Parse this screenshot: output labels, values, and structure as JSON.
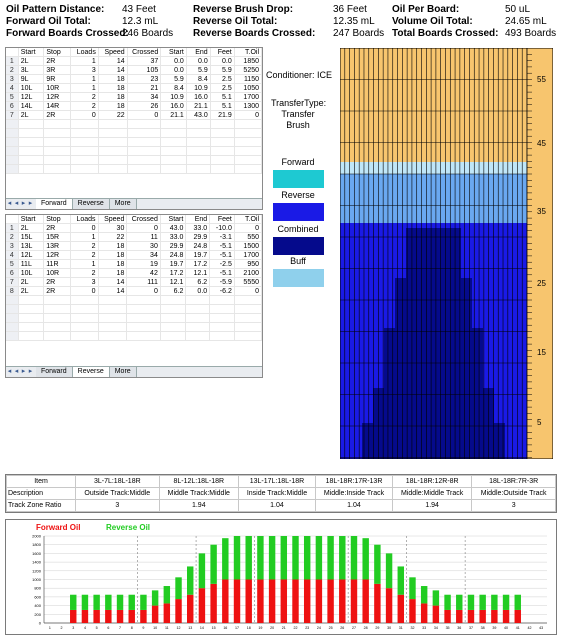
{
  "header": {
    "row1": [
      {
        "label": "Oil Pattern Distance:",
        "value": "43 Feet"
      },
      {
        "label": "Reverse Brush Drop:",
        "value": "36 Feet"
      },
      {
        "label": "Oil Per Board:",
        "value": "50 uL"
      }
    ],
    "row2": [
      {
        "label": "Forward Oil Total:",
        "value": "12.3 mL"
      },
      {
        "label": "Reverse Oil Total:",
        "value": "12.35 mL"
      },
      {
        "label": "Volume Oil Total:",
        "value": "24.65 mL"
      }
    ],
    "row3": [
      {
        "label": "Forward Boards Crossed:",
        "value": "246 Boards"
      },
      {
        "label": "Reverse Boards Crossed:",
        "value": "247 Boards"
      },
      {
        "label": "Total Boards Crossed:",
        "value": "493 Boards"
      }
    ]
  },
  "forward_grid": {
    "columns": [
      "Start",
      "Stop",
      "Loads",
      "Speed",
      "Crossed",
      "Start",
      "End",
      "Feet",
      "T.Oil"
    ],
    "rows": [
      [
        "2L",
        "2R",
        "1",
        "14",
        "37",
        "0.0",
        "0.0",
        "0.0",
        "1850"
      ],
      [
        "3L",
        "3R",
        "3",
        "14",
        "105",
        "0.0",
        "5.9",
        "5.9",
        "5250"
      ],
      [
        "9L",
        "9R",
        "1",
        "18",
        "23",
        "5.9",
        "8.4",
        "2.5",
        "1150"
      ],
      [
        "10L",
        "10R",
        "1",
        "18",
        "21",
        "8.4",
        "10.9",
        "2.5",
        "1050"
      ],
      [
        "12L",
        "12R",
        "2",
        "18",
        "34",
        "10.9",
        "16.0",
        "5.1",
        "1700"
      ],
      [
        "14L",
        "14R",
        "2",
        "18",
        "26",
        "16.0",
        "21.1",
        "5.1",
        "1300"
      ],
      [
        "2L",
        "2R",
        "0",
        "22",
        "0",
        "21.1",
        "43.0",
        "21.9",
        "0"
      ]
    ],
    "tabs": [
      "Forward",
      "Reverse",
      "More"
    ]
  },
  "reverse_grid": {
    "columns": [
      "Start",
      "Stop",
      "Loads",
      "Speed",
      "Crossed",
      "Start",
      "End",
      "Feet",
      "T.Oil"
    ],
    "rows": [
      [
        "2L",
        "2R",
        "0",
        "30",
        "0",
        "43.0",
        "33.0",
        "-10.0",
        "0"
      ],
      [
        "15L",
        "15R",
        "1",
        "22",
        "11",
        "33.0",
        "29.9",
        "-3.1",
        "550"
      ],
      [
        "13L",
        "13R",
        "2",
        "18",
        "30",
        "29.9",
        "24.8",
        "-5.1",
        "1500"
      ],
      [
        "12L",
        "12R",
        "2",
        "18",
        "34",
        "24.8",
        "19.7",
        "-5.1",
        "1700"
      ],
      [
        "11L",
        "11R",
        "1",
        "18",
        "19",
        "19.7",
        "17.2",
        "-2.5",
        "950"
      ],
      [
        "10L",
        "10R",
        "2",
        "18",
        "42",
        "17.2",
        "12.1",
        "-5.1",
        "2100"
      ],
      [
        "2L",
        "2R",
        "3",
        "14",
        "111",
        "12.1",
        "6.2",
        "-5.9",
        "5550"
      ],
      [
        "2L",
        "2R",
        "0",
        "14",
        "0",
        "6.2",
        "0.0",
        "-6.2",
        "0"
      ]
    ],
    "tabs": [
      "Forward",
      "Reverse",
      "More"
    ]
  },
  "conditioner": {
    "line": "Conditioner: ICE",
    "transfer1": "TransferType:",
    "transfer2": "Transfer Brush"
  },
  "legend": [
    {
      "label": "Forward",
      "color": "#1ec9d2"
    },
    {
      "label": "Reverse",
      "color": "#1a1ae6"
    },
    {
      "label": "Combined",
      "color": "#050a8c"
    },
    {
      "label": "Buff",
      "color": "#8fd0ec"
    }
  ],
  "lane_map": {
    "ruler_labels": [
      "55",
      "45",
      "35",
      "25",
      "15",
      "5"
    ],
    "colors": {
      "dry": "#f7c56e",
      "buff": "#bfe6f8",
      "light": "#6aa8f0",
      "reverse": "#1a1ae6",
      "combined": "#050a8c"
    }
  },
  "zone_table": {
    "headers": [
      "Item",
      "3L-7L:18L-18R",
      "8L-12L:18L-18R",
      "13L-17L:18L-18R",
      "18L-18R:17R-13R",
      "18L-18R:12R-8R",
      "18L-18R:7R-3R"
    ],
    "description": [
      "Description",
      "Outside Track:Middle",
      "Middle Track:Middle",
      "Inside Track:Middle",
      "Middle:Inside Track",
      "Middle:Middle Track",
      "Middle:Outside Track"
    ],
    "ratio": [
      "Track Zone Ratio",
      "3",
      "1.94",
      "1.04",
      "1.04",
      "1.94",
      "3"
    ]
  },
  "chart_data": {
    "type": "bar",
    "stacked": true,
    "legend_position": "top-left",
    "series": [
      {
        "name": "Forward Oil",
        "color": "#ee1111",
        "values": [
          0,
          0,
          300,
          300,
          300,
          300,
          300,
          300,
          300,
          400,
          450,
          550,
          650,
          800,
          900,
          1000,
          1000,
          1000,
          1000,
          1000,
          1000,
          1000,
          1000,
          1000,
          1000,
          1000,
          1000,
          1000,
          900,
          800,
          650,
          550,
          450,
          400,
          300,
          300,
          300,
          300,
          300,
          300,
          300,
          0,
          0
        ]
      },
      {
        "name": "Reverse Oil",
        "color": "#22cc22",
        "values": [
          0,
          0,
          350,
          350,
          350,
          350,
          350,
          350,
          350,
          350,
          400,
          500,
          650,
          800,
          900,
          950,
          1000,
          1000,
          1000,
          1000,
          1000,
          1000,
          1000,
          1000,
          1000,
          1000,
          1000,
          950,
          900,
          800,
          650,
          500,
          400,
          350,
          350,
          350,
          350,
          350,
          350,
          350,
          350,
          0,
          0
        ]
      }
    ],
    "ylim": [
      0,
      2000
    ],
    "y_ticks": [
      "2000",
      "1800",
      "1600",
      "1400",
      "1200",
      "1000",
      "800",
      "600",
      "400",
      "200",
      "0"
    ],
    "x_ticks": [
      "1",
      "2",
      "3",
      "4",
      "5",
      "6",
      "7",
      "8",
      "9",
      "10",
      "11",
      "12",
      "13",
      "14",
      "15",
      "16",
      "17",
      "18",
      "19",
      "20",
      "21",
      "22",
      "23",
      "24",
      "25",
      "26",
      "27",
      "28",
      "29",
      "30",
      "31",
      "32",
      "33",
      "34",
      "35",
      "36",
      "37",
      "38",
      "39",
      "40",
      "41",
      "42",
      "43"
    ],
    "grid": true
  }
}
